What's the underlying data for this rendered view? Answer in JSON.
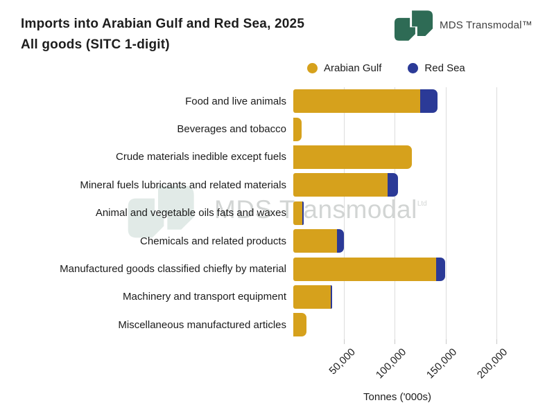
{
  "header": {
    "title_line1": "Imports into Arabian Gulf and Red Sea, 2025",
    "title_line2": "All goods (SITC 1-digit)",
    "brand_name": "MDS Transmodal™",
    "brand_color": "#2E6B55"
  },
  "legend": [
    {
      "label": "Arabian Gulf",
      "color": "#D6A11C"
    },
    {
      "label": "Red Sea",
      "color": "#2B3A97"
    }
  ],
  "watermark": {
    "text": "MDS Transmodal",
    "suffix": "Ltd"
  },
  "chart_data": {
    "type": "bar",
    "orientation": "horizontal",
    "stacked": true,
    "title": "Imports into Arabian Gulf and Red Sea, 2025 — All goods (SITC 1-digit)",
    "categories": [
      "Food and live animals",
      "Beverages and tobacco",
      "Crude materials inedible except fuels",
      "Mineral fuels lubricants and related materials",
      "Animal and vegetable oils fats and waxes",
      "Chemicals and related products",
      "Manufactured goods classified chiefly by material",
      "Machinery and transport equipment",
      "Miscellaneous manufactured articles"
    ],
    "series": [
      {
        "name": "Arabian Gulf",
        "color": "#D6A11C",
        "values": [
          125000,
          8000,
          117000,
          93000,
          9000,
          43000,
          141000,
          37000,
          13000
        ]
      },
      {
        "name": "Red Sea",
        "color": "#2B3A97",
        "values": [
          17000,
          0,
          0,
          10000,
          1500,
          7000,
          9000,
          1500,
          0
        ]
      }
    ],
    "xlabel": "Tonnes ('000s)",
    "x_ticks": [
      50000,
      100000,
      150000,
      200000
    ],
    "x_tick_labels": [
      "50,000",
      "100,000",
      "150,000",
      "200,000"
    ],
    "xlim": [
      0,
      205000
    ],
    "grid": "vertical",
    "gridline_color": "#dcdcdc",
    "legend_position": "top-right"
  }
}
